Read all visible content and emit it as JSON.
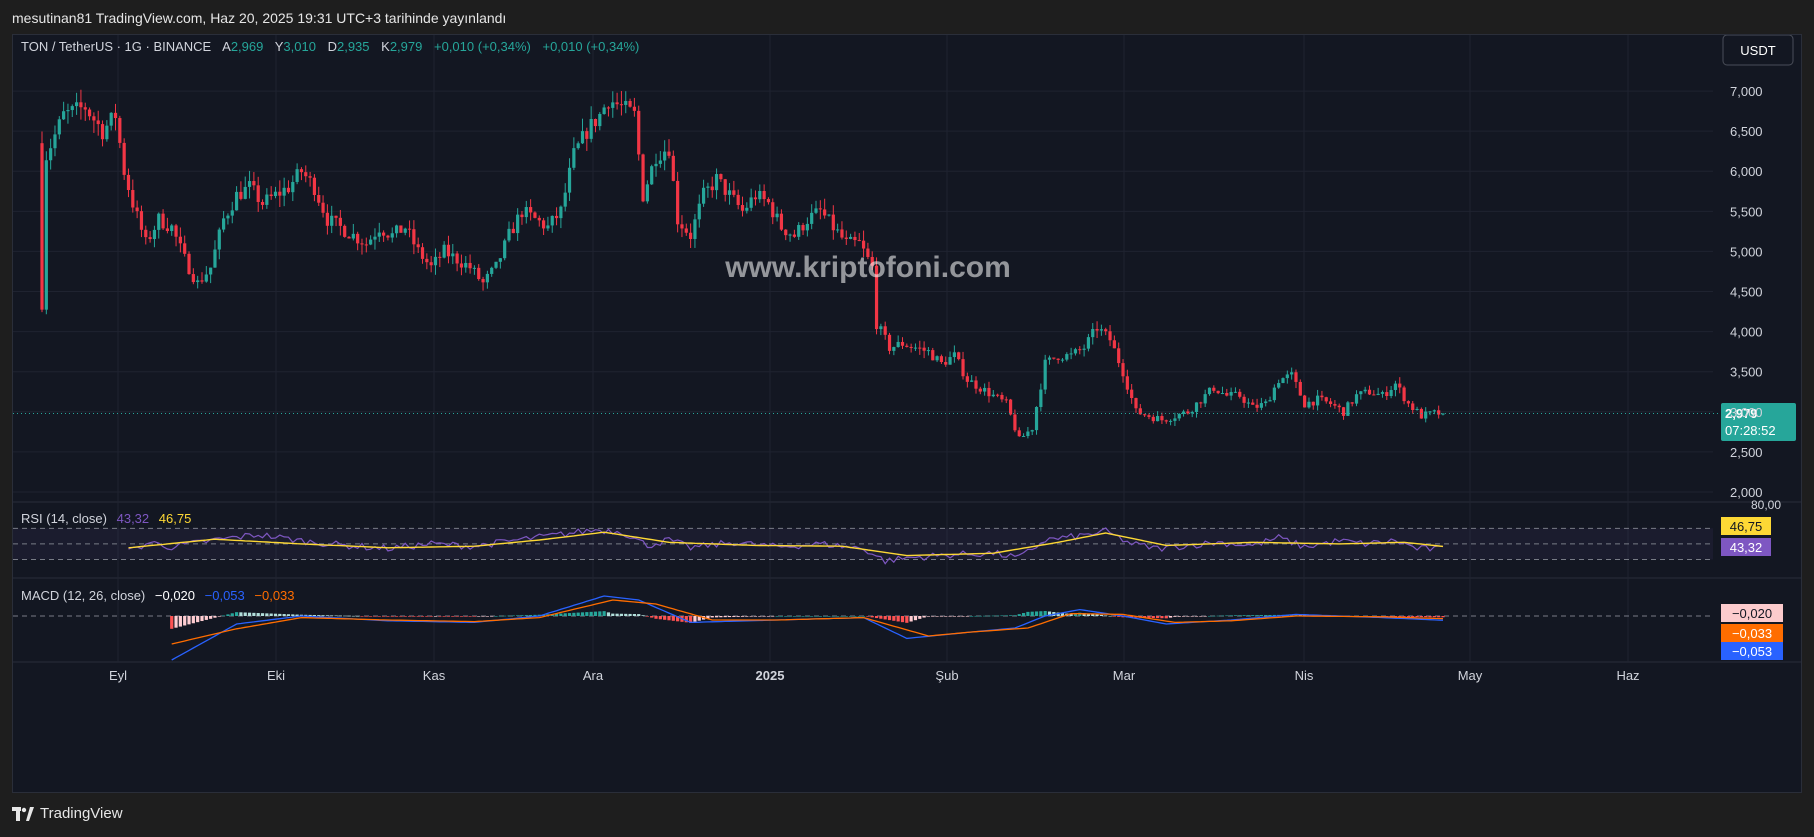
{
  "header": {
    "publish_line": "mesutinan81 TradingView.com, Haz 20, 2025 19:31 UTC+3 tarihinde yayınlandı"
  },
  "footer": {
    "brand": "TradingView",
    "logo_icon": "tradingview-logo-icon"
  },
  "legend": {
    "symbol": "TON / TetherUS · 1G · BINANCE",
    "o_label": "A",
    "o_value": "2,969",
    "h_label": "Y",
    "h_value": "3,010",
    "l_label": "D",
    "l_value": "2,935",
    "c_label": "K",
    "c_value": "2,979",
    "change1": "+0,010 (+0,34%)",
    "change2": "+0,010 (+0,34%)"
  },
  "currency_button": "USDT",
  "watermark": "www.kriptofoni.com",
  "price_tag": {
    "price": "2,979",
    "countdown": "07:28:52"
  },
  "rsi_legend": {
    "title": "RSI (14, close)",
    "rsi": "43,32",
    "ma": "46,75"
  },
  "macd_legend": {
    "title": "MACD (12, 26, close)",
    "hist": "−0,020",
    "macd": "−0,053",
    "signal": "−0,033"
  },
  "rsi_tags": {
    "ma": "46,75",
    "rsi": "43,32"
  },
  "macd_tags": {
    "hist": "−0,020",
    "signal": "−0,033",
    "macd": "−0,053"
  },
  "colors": {
    "up": "#26a69a",
    "down": "#f23645",
    "background": "#131722",
    "grid": "#1f2330",
    "rsi": "#7e57c2",
    "rsi_ma": "#fdd835",
    "macd": "#2962ff",
    "signal": "#ff6d00"
  },
  "chart_data": [
    {
      "type": "candlestick",
      "symbol": "TON / TetherUS",
      "interval": "1G",
      "ylim": [
        1.9,
        7.35
      ],
      "y_ticks": [
        "2,000",
        "2,500",
        "3,000",
        "3,500",
        "4,000",
        "4,500",
        "5,000",
        "5,500",
        "6,000",
        "6,500",
        "7,000"
      ],
      "y_tick_values": [
        2.0,
        2.5,
        3.0,
        3.5,
        4.0,
        4.5,
        5.0,
        5.5,
        6.0,
        6.5,
        7.0
      ],
      "x_ticks": [
        "Eyl",
        "Eki",
        "Kas",
        "Ara",
        "2025",
        "Şub",
        "Mar",
        "Nis",
        "May",
        "Haz"
      ],
      "close_anchors": [
        [
          0,
          4.35
        ],
        [
          1,
          6.2
        ],
        [
          5,
          6.7
        ],
        [
          10,
          6.8
        ],
        [
          14,
          6.5
        ],
        [
          17,
          6.7
        ],
        [
          19,
          6.0
        ],
        [
          21,
          5.6
        ],
        [
          24,
          5.1
        ],
        [
          27,
          5.4
        ],
        [
          30,
          5.3
        ],
        [
          33,
          4.9
        ],
        [
          36,
          4.6
        ],
        [
          39,
          4.8
        ],
        [
          42,
          5.4
        ],
        [
          45,
          5.7
        ],
        [
          48,
          5.8
        ],
        [
          51,
          5.6
        ],
        [
          54,
          5.7
        ],
        [
          57,
          5.8
        ],
        [
          60,
          6.0
        ],
        [
          63,
          5.8
        ],
        [
          66,
          5.4
        ],
        [
          69,
          5.3
        ],
        [
          72,
          5.2
        ],
        [
          75,
          5.1
        ],
        [
          78,
          5.3
        ],
        [
          81,
          5.2
        ],
        [
          84,
          5.3
        ],
        [
          87,
          5.0
        ],
        [
          90,
          4.8
        ],
        [
          93,
          5.0
        ],
        [
          96,
          4.9
        ],
        [
          99,
          4.8
        ],
        [
          102,
          4.6
        ],
        [
          105,
          4.8
        ],
        [
          108,
          5.2
        ],
        [
          111,
          5.5
        ],
        [
          114,
          5.4
        ],
        [
          117,
          5.3
        ],
        [
          120,
          5.5
        ],
        [
          123,
          6.2
        ],
        [
          126,
          6.5
        ],
        [
          129,
          6.7
        ],
        [
          131,
          6.9
        ],
        [
          134,
          6.8
        ],
        [
          137,
          6.7
        ],
        [
          139,
          5.7
        ],
        [
          142,
          6.2
        ],
        [
          145,
          6.3
        ],
        [
          147,
          5.4
        ],
        [
          150,
          5.2
        ],
        [
          153,
          5.7
        ],
        [
          156,
          5.9
        ],
        [
          159,
          5.7
        ],
        [
          162,
          5.5
        ],
        [
          165,
          5.7
        ],
        [
          168,
          5.6
        ],
        [
          171,
          5.3
        ],
        [
          174,
          5.2
        ],
        [
          177,
          5.4
        ],
        [
          180,
          5.5
        ],
        [
          183,
          5.3
        ],
        [
          186,
          5.1
        ],
        [
          189,
          5.1
        ],
        [
          192,
          4.8
        ],
        [
          193,
          4.1
        ],
        [
          196,
          3.8
        ],
        [
          199,
          3.85
        ],
        [
          202,
          3.8
        ],
        [
          205,
          3.75
        ],
        [
          208,
          3.6
        ],
        [
          211,
          3.7
        ],
        [
          214,
          3.4
        ],
        [
          217,
          3.3
        ],
        [
          220,
          3.2
        ],
        [
          223,
          3.1
        ],
        [
          226,
          2.65
        ],
        [
          229,
          2.8
        ],
        [
          232,
          3.6
        ],
        [
          235,
          3.7
        ],
        [
          238,
          3.7
        ],
        [
          241,
          3.8
        ],
        [
          244,
          4.05
        ],
        [
          247,
          3.9
        ],
        [
          250,
          3.5
        ],
        [
          253,
          3.0
        ],
        [
          256,
          2.95
        ],
        [
          259,
          2.9
        ],
        [
          262,
          2.95
        ],
        [
          265,
          3.0
        ],
        [
          268,
          3.15
        ],
        [
          271,
          3.3
        ],
        [
          274,
          3.2
        ],
        [
          277,
          3.2
        ],
        [
          280,
          3.05
        ],
        [
          283,
          3.1
        ],
        [
          286,
          3.4
        ],
        [
          289,
          3.45
        ],
        [
          292,
          3.1
        ],
        [
          295,
          3.15
        ],
        [
          298,
          3.1
        ],
        [
          301,
          3.0
        ],
        [
          304,
          3.2
        ],
        [
          307,
          3.25
        ],
        [
          310,
          3.2
        ],
        [
          313,
          3.35
        ],
        [
          316,
          3.1
        ],
        [
          319,
          2.95
        ],
        [
          322,
          2.98
        ],
        [
          324,
          2.979
        ]
      ],
      "last_price": 2.979
    },
    {
      "type": "line",
      "name": "RSI (14, close)",
      "ylim": [
        10,
        100
      ],
      "levels": [
        30,
        50,
        70
      ],
      "rsi_anchors": [
        [
          20,
          40
        ],
        [
          25,
          52
        ],
        [
          30,
          46
        ],
        [
          40,
          55
        ],
        [
          50,
          62
        ],
        [
          60,
          54
        ],
        [
          70,
          48
        ],
        [
          80,
          44
        ],
        [
          90,
          50
        ],
        [
          100,
          47
        ],
        [
          110,
          55
        ],
        [
          120,
          62
        ],
        [
          128,
          68
        ],
        [
          134,
          66
        ],
        [
          140,
          48
        ],
        [
          145,
          55
        ],
        [
          150,
          45
        ],
        [
          160,
          52
        ],
        [
          170,
          46
        ],
        [
          180,
          50
        ],
        [
          190,
          44
        ],
        [
          195,
          28
        ],
        [
          200,
          32
        ],
        [
          210,
          36
        ],
        [
          220,
          38
        ],
        [
          226,
          32
        ],
        [
          232,
          55
        ],
        [
          240,
          60
        ],
        [
          246,
          66
        ],
        [
          252,
          50
        ],
        [
          258,
          44
        ],
        [
          265,
          48
        ],
        [
          272,
          52
        ],
        [
          280,
          48
        ],
        [
          286,
          58
        ],
        [
          292,
          46
        ],
        [
          300,
          54
        ],
        [
          306,
          50
        ],
        [
          313,
          54
        ],
        [
          318,
          44
        ],
        [
          324,
          43.32
        ]
      ],
      "ma_anchors": [
        [
          20,
          45
        ],
        [
          40,
          56
        ],
        [
          60,
          50
        ],
        [
          80,
          45
        ],
        [
          100,
          47
        ],
        [
          115,
          55
        ],
        [
          130,
          65
        ],
        [
          145,
          52
        ],
        [
          165,
          48
        ],
        [
          185,
          47
        ],
        [
          200,
          35
        ],
        [
          220,
          38
        ],
        [
          235,
          52
        ],
        [
          246,
          64
        ],
        [
          260,
          48
        ],
        [
          280,
          52
        ],
        [
          300,
          50
        ],
        [
          315,
          52
        ],
        [
          324,
          46.75
        ]
      ]
    },
    {
      "type": "line+histogram",
      "name": "MACD (12, 26, close)",
      "ylim": [
        -0.55,
        0.45
      ],
      "macd_anchors": [
        [
          30,
          -0.55
        ],
        [
          45,
          -0.1
        ],
        [
          60,
          0
        ],
        [
          80,
          -0.06
        ],
        [
          100,
          -0.08
        ],
        [
          115,
          0
        ],
        [
          130,
          0.25
        ],
        [
          138,
          0.2
        ],
        [
          150,
          -0.08
        ],
        [
          170,
          -0.05
        ],
        [
          190,
          -0.02
        ],
        [
          200,
          -0.28
        ],
        [
          215,
          -0.2
        ],
        [
          225,
          -0.15
        ],
        [
          232,
          0
        ],
        [
          240,
          0.08
        ],
        [
          250,
          0
        ],
        [
          260,
          -0.1
        ],
        [
          275,
          -0.05
        ],
        [
          290,
          0.02
        ],
        [
          310,
          -0.02
        ],
        [
          324,
          -0.053
        ]
      ],
      "signal_anchors": [
        [
          30,
          -0.35
        ],
        [
          45,
          -0.16
        ],
        [
          60,
          -0.02
        ],
        [
          80,
          -0.05
        ],
        [
          100,
          -0.07
        ],
        [
          115,
          -0.02
        ],
        [
          132,
          0.2
        ],
        [
          142,
          0.15
        ],
        [
          155,
          -0.05
        ],
        [
          170,
          -0.05
        ],
        [
          190,
          -0.02
        ],
        [
          205,
          -0.25
        ],
        [
          215,
          -0.2
        ],
        [
          228,
          -0.15
        ],
        [
          238,
          0.03
        ],
        [
          250,
          0.02
        ],
        [
          262,
          -0.08
        ],
        [
          275,
          -0.06
        ],
        [
          290,
          0
        ],
        [
          310,
          -0.01
        ],
        [
          324,
          -0.033
        ]
      ]
    }
  ]
}
